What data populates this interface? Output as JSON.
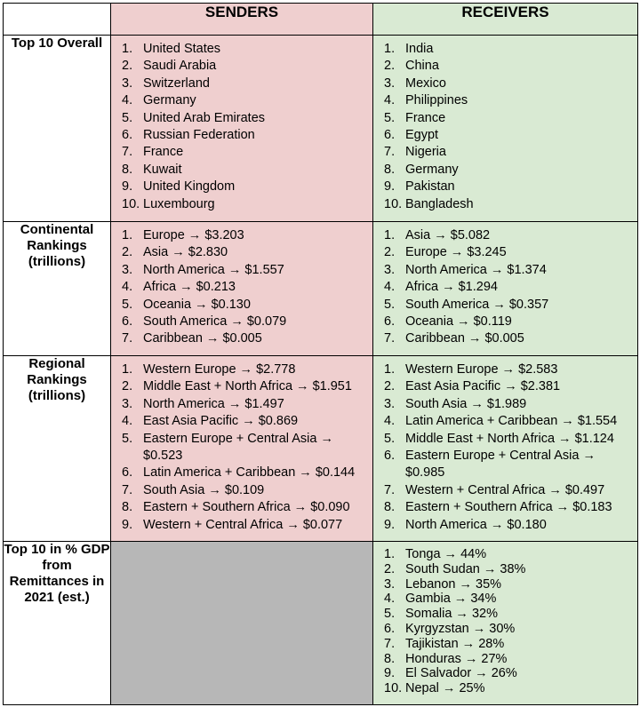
{
  "header": {
    "senders": "SENDERS",
    "receivers": "RECEIVERS"
  },
  "rows": {
    "top10": {
      "label": "Top 10 Overall",
      "senders": [
        "United States",
        "Saudi Arabia",
        "Switzerland",
        "Germany",
        "United Arab Emirates",
        "Russian Federation",
        "France",
        "Kuwait",
        "United Kingdom",
        "Luxembourg"
      ],
      "receivers": [
        "India",
        "China",
        "Mexico",
        "Philippines",
        "France",
        "Egypt",
        "Nigeria",
        "Germany",
        "Pakistan",
        "Bangladesh"
      ]
    },
    "continental": {
      "label": "Continental Rankings (trillions)",
      "senders": [
        "Europe → $3.203",
        "Asia → $2.830",
        "North America → $1.557",
        "Africa → $0.213",
        "Oceania → $0.130",
        "South America → $0.079",
        "Caribbean → $0.005"
      ],
      "receivers": [
        "Asia → $5.082",
        "Europe → $3.245",
        "North America → $1.374",
        "Africa → $1.294",
        "South America → $0.357",
        "Oceania → $0.119",
        "Caribbean → $0.005"
      ]
    },
    "regional": {
      "label": "Regional Rankings (trillions)",
      "senders": [
        "Western Europe → $2.778",
        "Middle East + North Africa → $1.951",
        "North America → $1.497",
        "East Asia Pacific → $0.869",
        "Eastern Europe + Central Asia → $0.523",
        "Latin America + Caribbean → $0.144",
        "South Asia → $0.109",
        "Eastern + Southern Africa → $0.090",
        "Western + Central Africa → $0.077"
      ],
      "receivers": [
        "Western Europe → $2.583",
        "East Asia Pacific → $2.381",
        "South Asia → $1.989",
        "Latin America + Caribbean → $1.554",
        "Middle East + North Africa → $1.124",
        "Eastern Europe + Central Asia → $0.985",
        "Western + Central Africa → $0.497",
        "Eastern + Southern Africa → $0.183",
        "North America → $0.180"
      ]
    },
    "gdp": {
      "label": "Top 10 in % GDP from Remittances in 2021 (est.)",
      "receivers": [
        "Tonga → 44%",
        "South Sudan → 38%",
        "Lebanon → 35%",
        "Gambia → 34%",
        "Somalia → 32%",
        "Kyrgyzstan → 30%",
        "Tajikistan → 28%",
        "Honduras → 27%",
        "El Salvador → 26%",
        "Nepal → 25%"
      ]
    }
  },
  "colors": {
    "senders_bg": "#efcfcf",
    "receivers_bg": "#d9ead3",
    "empty_bg": "#b7b7b7"
  }
}
